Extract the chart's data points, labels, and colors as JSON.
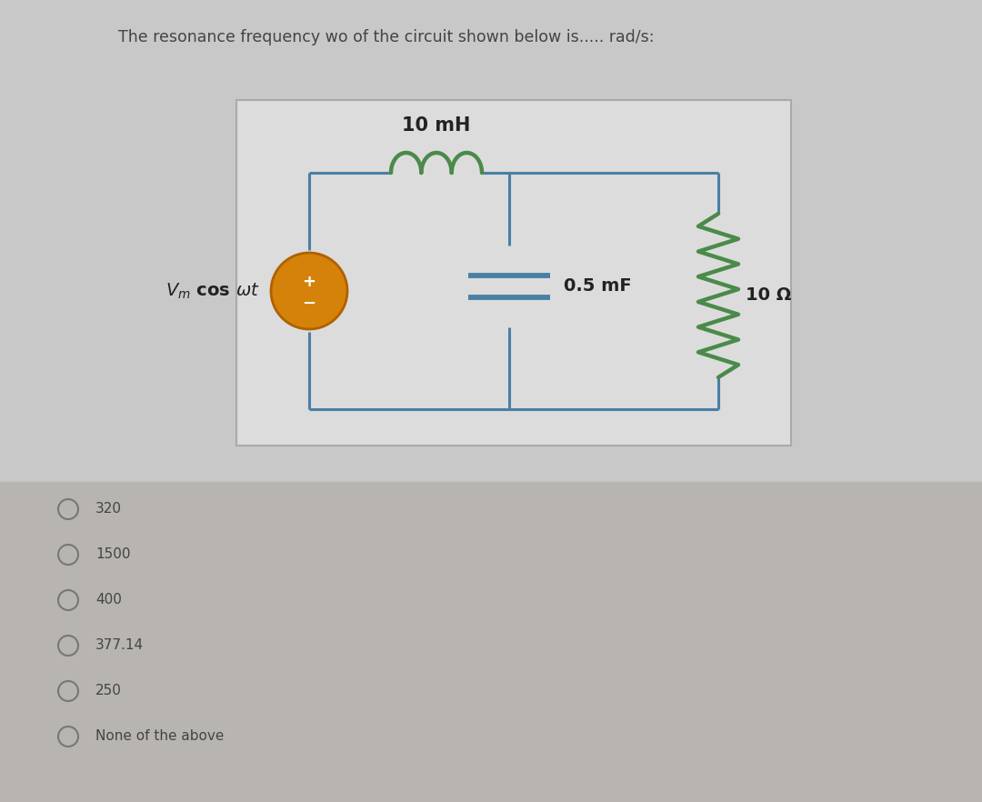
{
  "top_bg": "#c8c8c8",
  "bottom_bg": "#b8b5b0",
  "circuit_box_bg": "#dcdcdc",
  "circuit_box_edge": "#5a7a9a",
  "title_text": "The resonance frequency wo of the circuit shown below is..... rad/s:",
  "title_fontsize": 12.5,
  "title_color": "#444444",
  "wire_color": "#4a7fa5",
  "wire_lw": 2.2,
  "inductor_color": "#4a8a4a",
  "resistor_color": "#4a8a4a",
  "capacitor_color": "#4a7fa5",
  "source_fill": "#d4820a",
  "source_edge": "#b06000",
  "label_color": "#222222",
  "label_fontsize": 13,
  "inductor_label": "10 mH",
  "capacitor_label": "0.5 mF",
  "resistor_label": "10 Ω",
  "options": [
    "320",
    "1500",
    "400",
    "377.14",
    "250",
    "None of the above"
  ],
  "option_fontsize": 11,
  "option_color": "#444444",
  "radio_color": "#777777"
}
